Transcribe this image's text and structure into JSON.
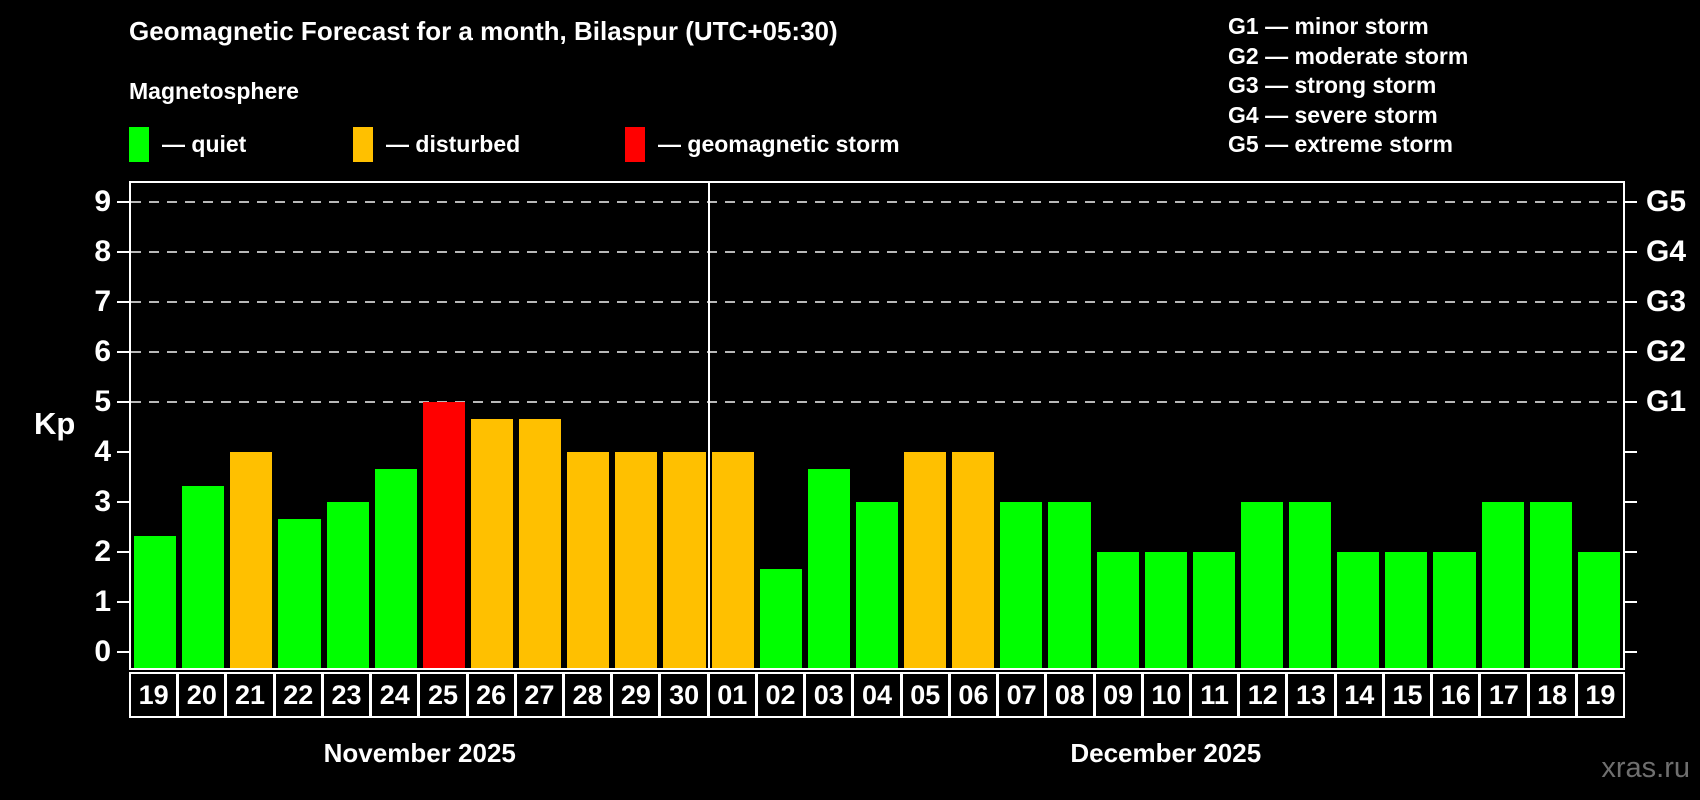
{
  "title": "Geomagnetic Forecast for a month, Bilaspur (UTC+05:30)",
  "subtitle": "Magnetosphere",
  "legend": {
    "items": [
      {
        "name": "quiet",
        "label": "— quiet",
        "color": "#00ff00"
      },
      {
        "name": "disturbed",
        "label": "— disturbed",
        "color": "#ffc000"
      },
      {
        "name": "storm",
        "label": "— geomagnetic storm",
        "color": "#ff0000"
      }
    ]
  },
  "storm_scale_legend": {
    "items": [
      "G1 — minor storm",
      "G2 — moderate storm",
      "G3 — strong storm",
      "G4 — severe storm",
      "G5 — extreme storm"
    ]
  },
  "watermark": "xras.ru",
  "chart_data": {
    "type": "bar",
    "title": "Geomagnetic Forecast for a month, Bilaspur (UTC+05:30)",
    "ylabel": "Kp",
    "ylim": [
      0,
      9.4
    ],
    "y_ticks": [
      0,
      1,
      2,
      3,
      4,
      5,
      6,
      7,
      8,
      9
    ],
    "gridlines": [
      5,
      6,
      7,
      8,
      9
    ],
    "grid": "dashed horizontal at storm levels only",
    "right_axis": [
      {
        "label": "G1",
        "level": 5
      },
      {
        "label": "G2",
        "level": 6
      },
      {
        "label": "G3",
        "level": 7
      },
      {
        "label": "G4",
        "level": 8
      },
      {
        "label": "G5",
        "level": 9
      }
    ],
    "status_colors": {
      "quiet": "#00ff00",
      "disturbed": "#ffc000",
      "storm": "#ff0000"
    },
    "months": [
      {
        "label": "November 2025",
        "days": [
          "19",
          "20",
          "21",
          "22",
          "23",
          "24",
          "25",
          "26",
          "27",
          "28",
          "29",
          "30"
        ],
        "values": [
          2.33,
          3.33,
          4,
          2.67,
          3,
          3.67,
          5,
          4.67,
          4.67,
          4,
          4,
          4
        ],
        "statuses": [
          "quiet",
          "quiet",
          "disturbed",
          "quiet",
          "quiet",
          "quiet",
          "storm",
          "disturbed",
          "disturbed",
          "disturbed",
          "disturbed",
          "disturbed"
        ]
      },
      {
        "label": "December 2025",
        "days": [
          "01",
          "02",
          "03",
          "04",
          "05",
          "06",
          "07",
          "08",
          "09",
          "10",
          "11",
          "12",
          "13",
          "14",
          "15",
          "16",
          "17",
          "18",
          "19"
        ],
        "values": [
          4,
          1.67,
          3.67,
          3,
          4,
          4,
          3,
          3,
          2,
          2,
          2,
          3,
          3,
          2,
          2,
          2,
          3,
          3,
          2
        ],
        "statuses": [
          "disturbed",
          "quiet",
          "quiet",
          "quiet",
          "disturbed",
          "disturbed",
          "quiet",
          "quiet",
          "quiet",
          "quiet",
          "quiet",
          "quiet",
          "quiet",
          "quiet",
          "quiet",
          "quiet",
          "quiet",
          "quiet",
          "quiet"
        ]
      }
    ]
  }
}
